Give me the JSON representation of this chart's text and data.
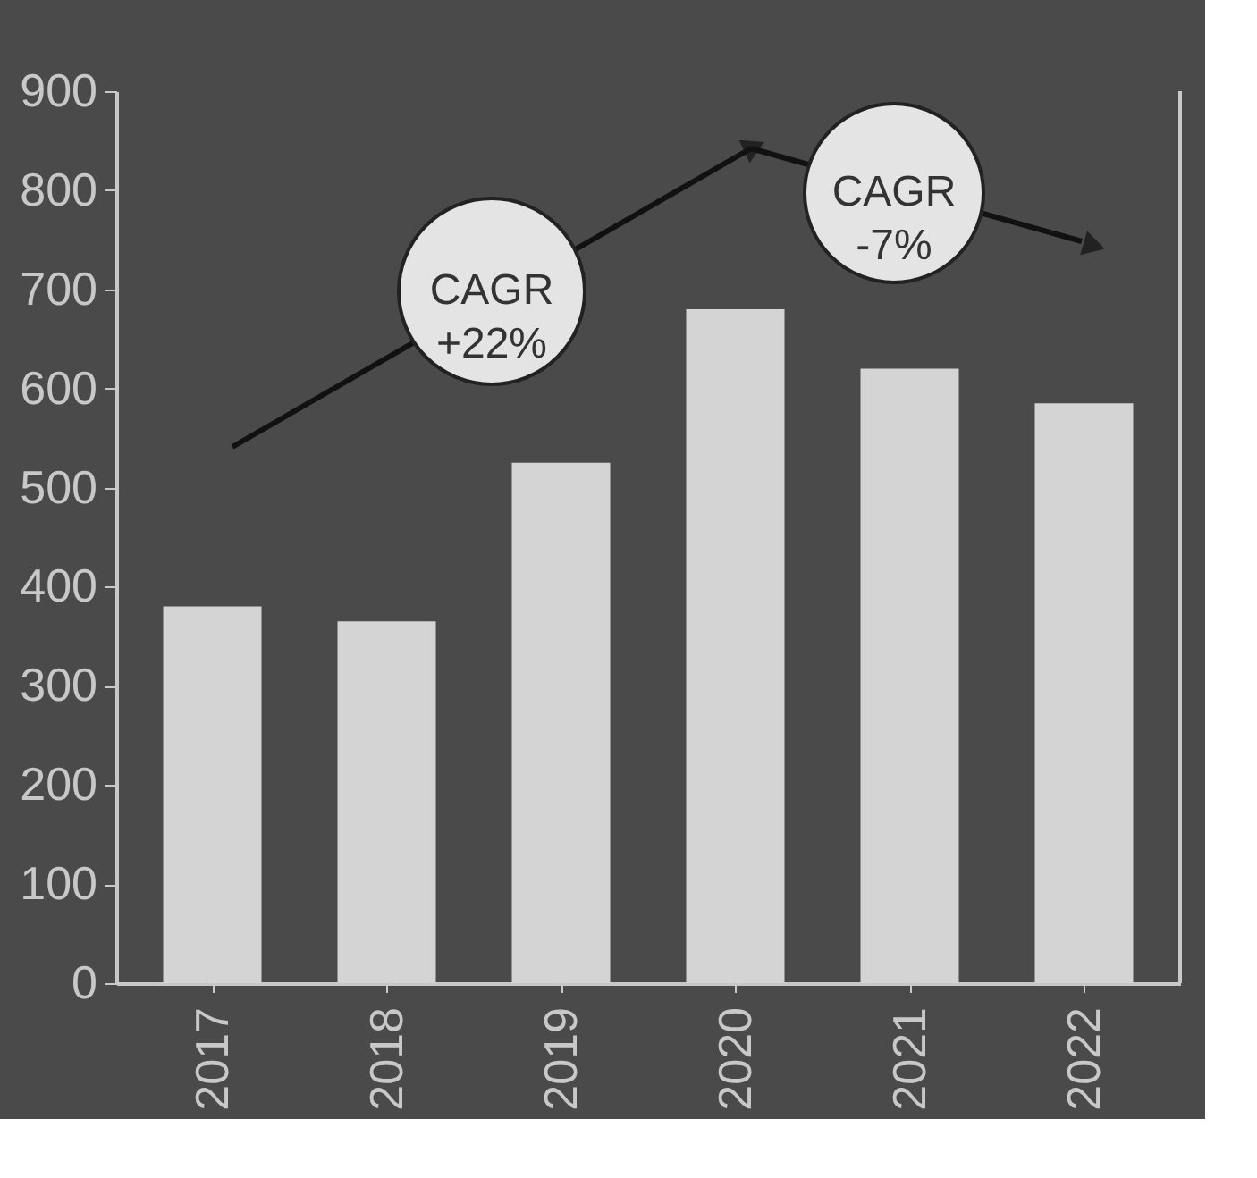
{
  "chart_data": {
    "type": "bar",
    "categories": [
      "2017",
      "2018",
      "2019",
      "2020",
      "2021",
      "2022"
    ],
    "values": [
      380,
      365,
      525,
      680,
      620,
      585
    ],
    "color": "#d4d4d4",
    "ylim": [
      0,
      900
    ],
    "yticks": [
      0,
      100,
      200,
      300,
      400,
      500,
      600,
      700,
      800,
      900
    ],
    "grid": false,
    "annotations": [
      "CAGR +22%",
      "CAGR -7%"
    ]
  }
}
